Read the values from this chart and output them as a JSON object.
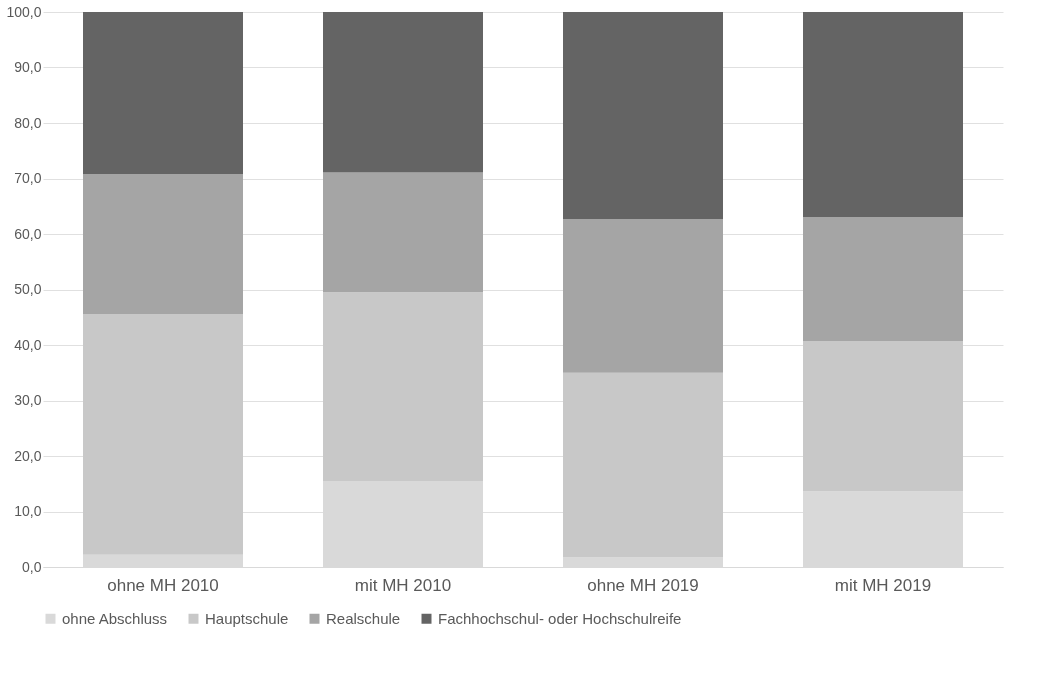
{
  "chart_data": {
    "type": "bar",
    "stacked": true,
    "categories": [
      "ohne MH 2010",
      "mit MH 2010",
      "ohne MH 2019",
      "mit MH 2019"
    ],
    "series": [
      {
        "name": "ohne Abschluss",
        "color": "#d9d9d9",
        "values": [
          2.2,
          15.5,
          1.7,
          13.6
        ]
      },
      {
        "name": "Hauptschule",
        "color": "#c8c8c8",
        "values": [
          43.4,
          34.0,
          33.3,
          27.1
        ]
      },
      {
        "name": "Realschule",
        "color": "#a5a5a5",
        "values": [
          25.2,
          21.6,
          27.7,
          22.3
        ]
      },
      {
        "name": "Fachhochschul- oder Hochschulreife",
        "color": "#646464",
        "values": [
          29.2,
          28.9,
          37.3,
          37.0
        ]
      }
    ],
    "ylim": [
      0,
      100
    ],
    "yticks": [
      {
        "value": 0,
        "label": "0,0"
      },
      {
        "value": 10,
        "label": "10,0"
      },
      {
        "value": 20,
        "label": "20,0"
      },
      {
        "value": 30,
        "label": "30,0"
      },
      {
        "value": 40,
        "label": "40,0"
      },
      {
        "value": 50,
        "label": "50,0"
      },
      {
        "value": 60,
        "label": "60,0"
      },
      {
        "value": 70,
        "label": "70,0"
      },
      {
        "value": 80,
        "label": "80,0"
      },
      {
        "value": 90,
        "label": "90,0"
      },
      {
        "value": 100,
        "label": "100,0"
      }
    ],
    "grid": "y",
    "legend": "bottom"
  }
}
